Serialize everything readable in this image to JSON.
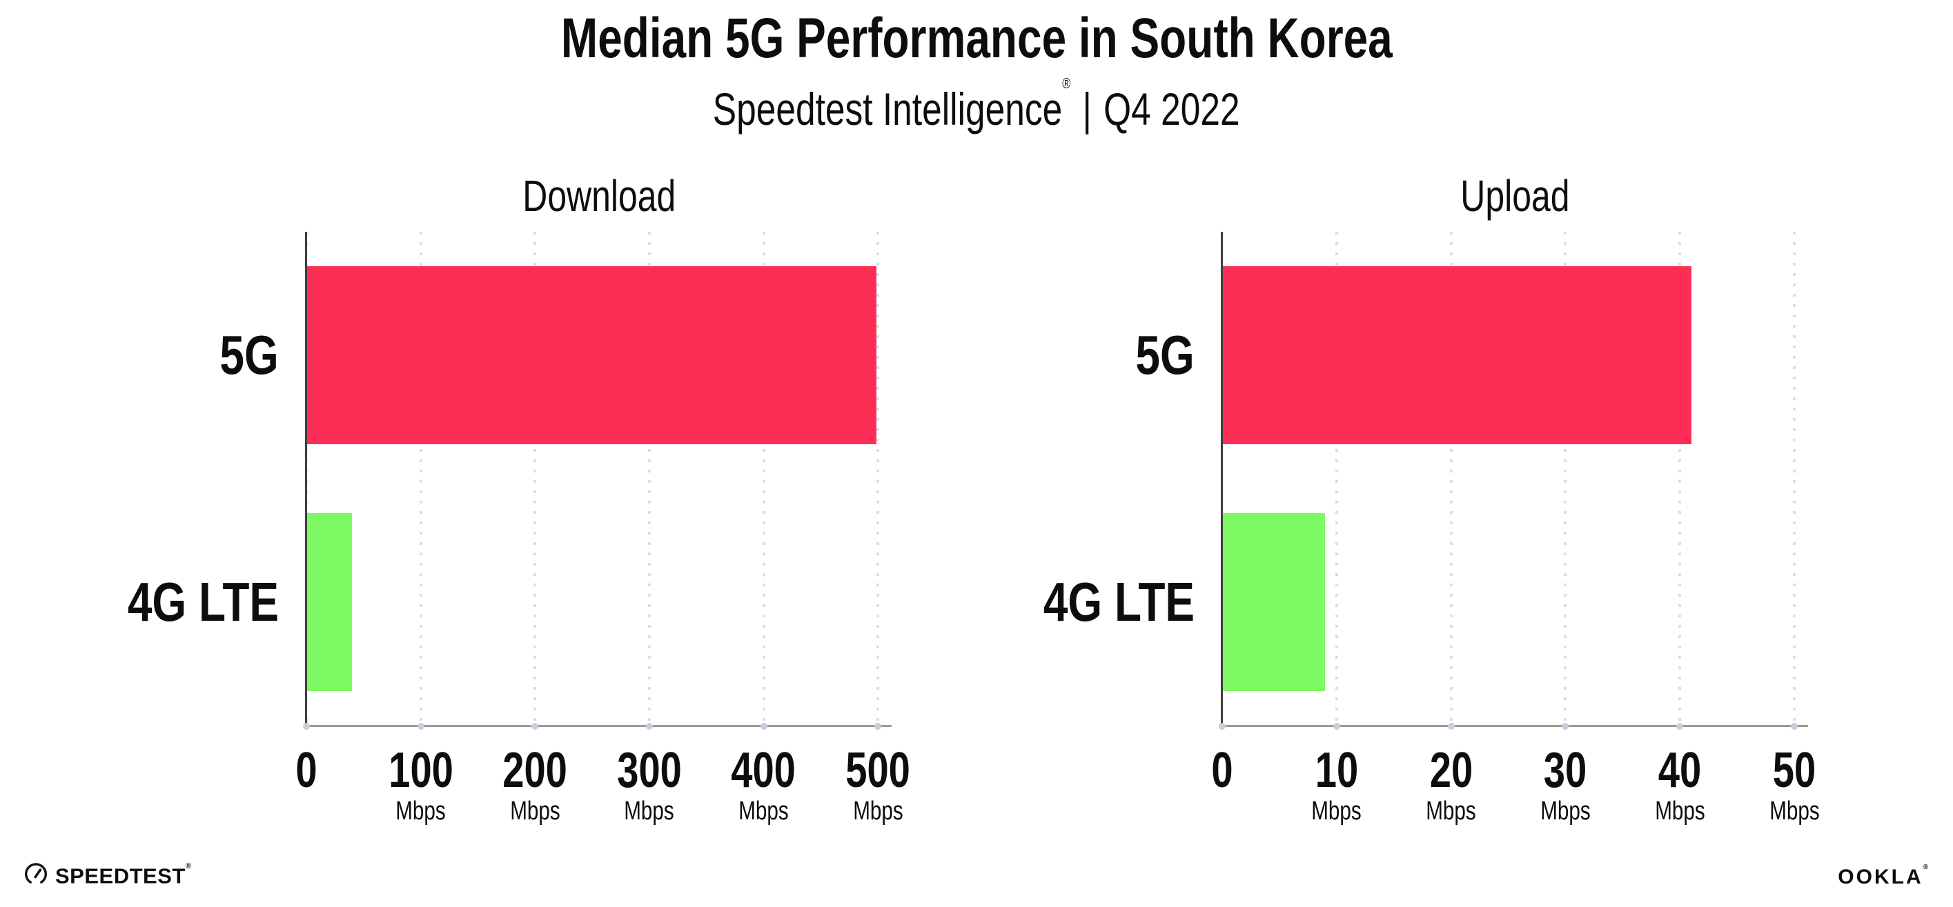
{
  "header": {
    "title": "Median 5G Performance in South Korea",
    "subtitle": {
      "brand": "Speedtest Intelligence",
      "reg": "®",
      "divider": "|",
      "period": "Q4 2022"
    }
  },
  "chart_data": [
    {
      "type": "bar",
      "orientation": "horizontal",
      "title": "Download",
      "categories": [
        "5G",
        "4G LTE"
      ],
      "values": [
        499,
        40
      ],
      "unit": "Mbps",
      "xticks": [
        0,
        100,
        200,
        300,
        400,
        500
      ],
      "tick_unit": "Mbps",
      "xlim": [
        0,
        512
      ],
      "grid": "dotted-vertical",
      "legend": "none"
    },
    {
      "type": "bar",
      "orientation": "horizontal",
      "title": "Upload",
      "categories": [
        "5G",
        "4G LTE"
      ],
      "values": [
        41,
        9
      ],
      "unit": "Mbps",
      "xticks": [
        0,
        10,
        20,
        30,
        40,
        50
      ],
      "tick_unit": "Mbps",
      "xlim": [
        0,
        51.2
      ],
      "grid": "dotted-vertical",
      "legend": "none"
    }
  ],
  "colors": {
    "bar_5g": "#FC2E56",
    "bar_4g_lte": "#7DF963",
    "gridline": "#DCDDE6",
    "axis_y": "#3F3F3F",
    "axis_x": "#9B9B9B",
    "tick_dot": "#C9CEDE",
    "text": "#0D0D0D"
  },
  "footer": {
    "speedtest": {
      "text": "SPEEDTEST",
      "mark": "®"
    },
    "ookla": {
      "text": "OOKLA",
      "mark": "®"
    }
  }
}
